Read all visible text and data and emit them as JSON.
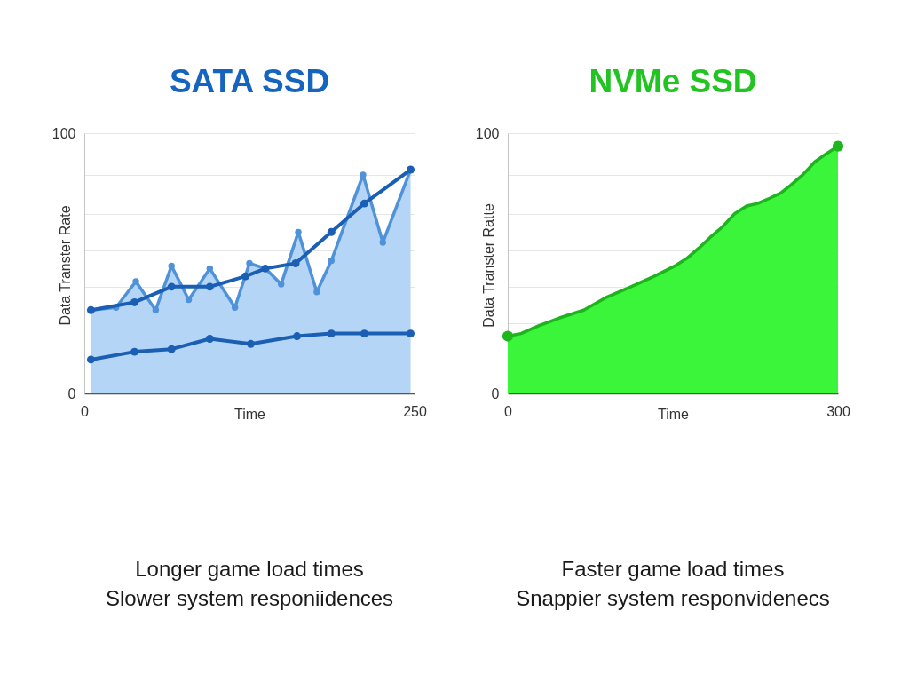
{
  "chart_data": [
    {
      "type": "area",
      "title": "SATA SSD",
      "xlabel": "Time",
      "ylabel": "Data Transter Rate",
      "xlim": [
        0,
        250
      ],
      "ylim": [
        0,
        100
      ],
      "xticks": [
        0,
        250
      ],
      "yticks": [
        0,
        {
          "value": 41,
          "label": null
        },
        {
          "value": 55,
          "label": null
        },
        {
          "value": 69,
          "label": null
        },
        {
          "value": 84,
          "label": null
        },
        100
      ],
      "grid": "y",
      "marker": "circle",
      "series": [
        {
          "color": "#b5d5f7",
          "x": [
            5,
            24,
            39,
            54,
            66,
            79,
            95,
            114,
            125,
            137,
            149,
            162,
            176,
            187,
            211,
            226,
            247
          ],
          "values": [
            32,
            33,
            43,
            32,
            49,
            36,
            48,
            33,
            50,
            48,
            42,
            62,
            39,
            51,
            84,
            58,
            86
          ]
        },
        {
          "type": "line",
          "color": "#1a5fb4",
          "x": [
            5,
            38,
            66,
            95,
            122,
            137,
            160,
            187,
            212,
            247
          ],
          "values": [
            32,
            35,
            41,
            41,
            45,
            48,
            50,
            62,
            73,
            86
          ]
        },
        {
          "type": "line",
          "color": "#1a5fb4",
          "x": [
            5,
            38,
            66,
            95,
            126,
            161,
            187,
            212,
            247
          ],
          "values": [
            13,
            16,
            17,
            21,
            19,
            22,
            23,
            23,
            23
          ]
        }
      ],
      "annotations": [
        "Longer game load times",
        "Slower system responiidences"
      ]
    },
    {
      "type": "area",
      "title": "NVMe SSD",
      "xlabel": "Time",
      "ylabel": "Data Transter Ratte",
      "xlim": [
        0,
        300
      ],
      "ylim": [
        0,
        100
      ],
      "xticks": [
        0,
        300
      ],
      "yticks": [
        0,
        {
          "value": 27,
          "label": null
        },
        {
          "value": 41,
          "label": null
        },
        {
          "value": 55,
          "label": null
        },
        {
          "value": 69,
          "label": null
        },
        {
          "value": 84,
          "label": null
        },
        100
      ],
      "grid": "y",
      "series": [
        {
          "color": "#3af53a",
          "x": [
            0,
            12,
            28,
            47,
            69,
            90,
            112,
            133,
            152,
            163,
            174,
            184,
            195,
            206,
            217,
            227,
            238,
            248,
            257,
            268,
            279,
            289,
            300
          ],
          "values": [
            22,
            23,
            26,
            29,
            32,
            37,
            41,
            45,
            49,
            52,
            56,
            60,
            64,
            69,
            72,
            73,
            75,
            77,
            80,
            84,
            89,
            92,
            95
          ]
        },
        {
          "type": "scatter",
          "color": "#1fb51f",
          "x": [
            0,
            300
          ],
          "values": [
            22,
            95
          ]
        }
      ],
      "annotations": [
        "Faster game load times",
        "Snappier system responvidenecs"
      ]
    }
  ]
}
